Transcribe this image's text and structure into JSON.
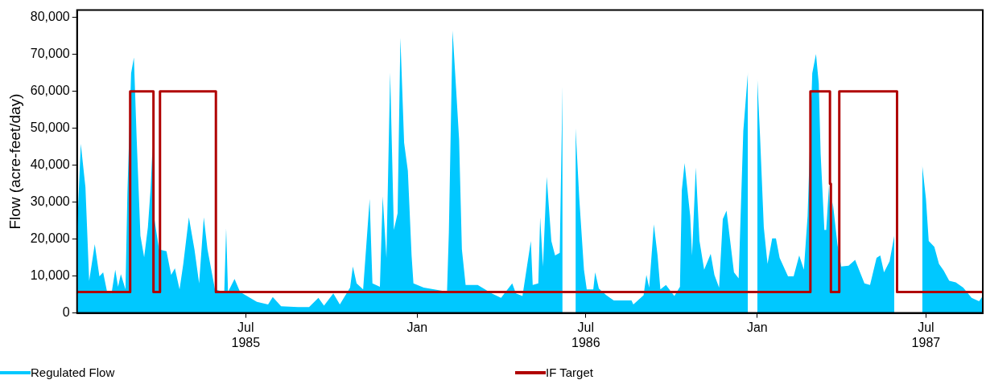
{
  "chart_data": {
    "type": "area",
    "ylabel": "Flow (acre-feet/day)",
    "xlim": [
      "1985-01-01",
      "1987-08-31"
    ],
    "ylim": [
      0,
      82000
    ],
    "xticks": [
      {
        "value": "1985-07-01",
        "label": "Jul\n1985"
      },
      {
        "value": "1986-01-01",
        "label": "Jan"
      },
      {
        "value": "1986-07-01",
        "label": "Jul\n1986"
      },
      {
        "value": "1987-01-01",
        "label": "Jan"
      },
      {
        "value": "1987-07-01",
        "label": "Jul\n1987"
      }
    ],
    "yticks": [
      0,
      {
        "value": 10000,
        "label": "10,000"
      },
      {
        "value": 20000,
        "label": "20,000"
      },
      {
        "value": 30000,
        "label": "30,000"
      },
      {
        "value": 40000,
        "label": "40,000"
      },
      {
        "value": 50000,
        "label": "50,000"
      },
      {
        "value": 60000,
        "label": "60,000"
      },
      {
        "value": 70000,
        "label": "70,000"
      },
      {
        "value": 80000,
        "label": "80,000"
      }
    ],
    "grid": false,
    "legend": "bottom",
    "marker": "none",
    "series": [
      {
        "name": "Regulated Flow",
        "type": "area",
        "color": "#00c8ff",
        "x": [
          "1985-01-01",
          "1985-01-05",
          "1985-01-10",
          "1985-01-14",
          "1985-01-20",
          "1985-01-25",
          "1985-01-29",
          "1985-02-02",
          "1985-02-07",
          "1985-02-11",
          "1985-02-14",
          "1985-02-17",
          "1985-02-22",
          "1985-02-24",
          "1985-02-28",
          "1985-03-03",
          "1985-03-06",
          "1985-03-10",
          "1985-03-14",
          "1985-03-18",
          "1985-03-21",
          "1985-03-23",
          "1985-03-25",
          "1985-03-30",
          "1985-04-07",
          "1985-04-12",
          "1985-04-16",
          "1985-04-21",
          "1985-04-25",
          "1985-05-01",
          "1985-05-07",
          "1985-05-12",
          "1985-05-17",
          "1985-05-21",
          "1985-05-29",
          "1985-06-08",
          "1985-06-10",
          "1985-06-12",
          "1985-06-19",
          "1985-06-25",
          "1985-07-13",
          "1985-07-25",
          "1985-07-30",
          "1985-08-08",
          "1985-08-26",
          "1985-09-07",
          "1985-09-17",
          "1985-09-23",
          "1985-10-03",
          "1985-10-10",
          "1985-10-21",
          "1985-10-24",
          "1985-10-28",
          "1985-11-04",
          "1985-11-11",
          "1985-11-14",
          "1985-11-22",
          "1985-11-25",
          "1985-11-29",
          "1985-12-03",
          "1985-12-07",
          "1985-12-11",
          "1985-12-14",
          "1985-12-18",
          "1985-12-22",
          "1985-12-26",
          "1985-12-28",
          "1986-01-08",
          "1986-01-28",
          "1986-02-02",
          "1986-02-04",
          "1986-02-08",
          "1986-02-12",
          "1986-02-15",
          "1986-02-18",
          "1986-02-22",
          "1986-03-07",
          "1986-03-22",
          "1986-04-01",
          "1986-04-13",
          "1986-04-17",
          "1986-04-24",
          "1986-05-03",
          "1986-05-05",
          "1986-05-11",
          "1986-05-13",
          "1986-05-16",
          "1986-05-20",
          "1986-05-25",
          "1986-05-29",
          "1986-06-03",
          "1986-06-06",
          "1986-06-08",
          "1986-06-17",
          "1986-06-20",
          "1986-06-24",
          "1986-06-29",
          "1986-07-02",
          "1986-07-09",
          "1986-07-11",
          "1986-07-15",
          "1986-07-23",
          "1986-07-31",
          "1986-08-19",
          "1986-08-21",
          "1986-09-01",
          "1986-09-04",
          "1986-09-07",
          "1986-09-12",
          "1986-09-16",
          "1986-09-19",
          "1986-09-25",
          "1986-10-04",
          "1986-10-10",
          "1986-10-12",
          "1986-10-15",
          "1986-10-21",
          "1986-10-23",
          "1986-10-27",
          "1986-10-31",
          "1986-11-05",
          "1986-11-12",
          "1986-11-16",
          "1986-11-21",
          "1986-11-25",
          "1986-11-29",
          "1986-12-07",
          "1986-12-12",
          "1986-12-17",
          "1986-12-22",
          "1986-12-24",
          "1986-12-29",
          "1987-01-01",
          "1987-01-04",
          "1987-01-08",
          "1987-01-12",
          "1987-01-17",
          "1987-01-21",
          "1987-01-25",
          "1987-02-03",
          "1987-02-09",
          "1987-02-15",
          "1987-02-20",
          "1987-02-24",
          "1987-03-01",
          "1987-03-05",
          "1987-03-08",
          "1987-03-10",
          "1987-03-14",
          "1987-03-16",
          "1987-03-19",
          "1987-03-21",
          "1987-03-23",
          "1987-03-28",
          "1987-04-01",
          "1987-04-09",
          "1987-04-16",
          "1987-04-26",
          "1987-05-02",
          "1987-05-09",
          "1987-05-13",
          "1987-05-17",
          "1987-05-23",
          "1987-05-28",
          "1987-06-02",
          "1987-06-26",
          "1987-06-27",
          "1987-07-01",
          "1987-07-04",
          "1987-07-10",
          "1987-07-15",
          "1987-07-20",
          "1987-07-26",
          "1987-08-02",
          "1987-08-10",
          "1987-08-19",
          "1987-08-27",
          "1987-08-31"
        ],
        "values": [
          22000,
          45800,
          34000,
          8700,
          18600,
          9900,
          11000,
          6000,
          5300,
          11700,
          7100,
          10500,
          6400,
          32300,
          64900,
          69200,
          47000,
          20900,
          15100,
          23200,
          33900,
          44900,
          25400,
          17200,
          16700,
          10300,
          12100,
          6400,
          13300,
          25900,
          17200,
          8000,
          25900,
          17200,
          6400,
          5700,
          22900,
          5700,
          9200,
          5700,
          3000,
          2300,
          4300,
          1800,
          1600,
          1600,
          4100,
          2000,
          5300,
          2300,
          6900,
          12600,
          8000,
          6400,
          30900,
          8000,
          7100,
          31600,
          14900,
          65100,
          22500,
          27000,
          74500,
          46100,
          38500,
          15600,
          8000,
          6900,
          6000,
          5300,
          21800,
          76500,
          59800,
          47000,
          17200,
          7600,
          7600,
          5300,
          4100,
          8000,
          5300,
          4600,
          19500,
          7600,
          8000,
          25900,
          12600,
          36900,
          19500,
          15600,
          16300,
          61400,
          null,
          null,
          50000,
          30900,
          11700,
          6400,
          6400,
          11000,
          6600,
          4800,
          3400,
          3400,
          2300,
          4800,
          10300,
          6900,
          24000,
          15600,
          6400,
          7600,
          4600,
          7100,
          33200,
          40600,
          26300,
          15600,
          39400,
          19500,
          11700,
          16000,
          10300,
          6900,
          25400,
          27700,
          11000,
          9400,
          49300,
          65300,
          null,
          null,
          63700,
          47700,
          23200,
          13300,
          20200,
          20200,
          14900,
          9900,
          9900,
          15600,
          11700,
          26300,
          64900,
          70100,
          62100,
          43100,
          22500,
          22500,
          34600,
          20900,
          30000,
          18600,
          12600,
          12800,
          14400,
          8000,
          7600,
          14900,
          15600,
          11000,
          14000,
          20900,
          null,
          null,
          40100,
          30900,
          19500,
          17900,
          13300,
          11500,
          8700,
          8300,
          6900,
          4100,
          3200,
          4600
        ]
      },
      {
        "name": "IF Target",
        "type": "step",
        "color": "#b00000",
        "x": [
          "1985-01-01",
          "1985-02-27",
          "1985-03-24",
          "1985-03-31",
          "1985-05-30",
          "1987-02-27",
          "1987-03-20",
          "1987-03-21",
          "1987-03-30",
          "1987-05-31",
          "1987-08-31"
        ],
        "values": [
          5700,
          60000,
          5700,
          60000,
          5700,
          60000,
          35000,
          5700,
          60000,
          5700,
          5700
        ]
      }
    ]
  }
}
